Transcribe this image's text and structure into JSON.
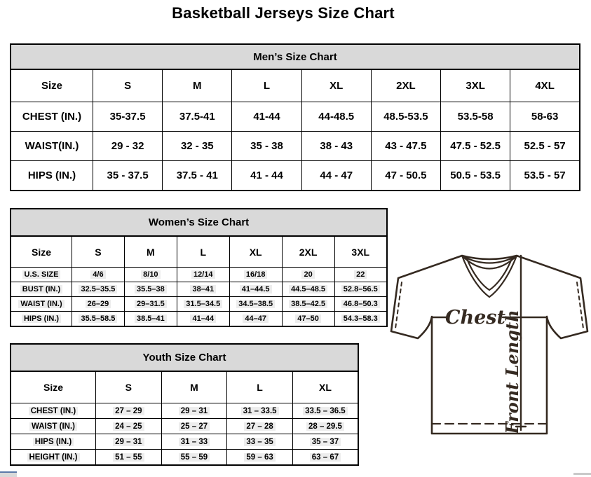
{
  "page_title": "Basketball Jerseys Size Chart",
  "colors": {
    "table_header_bg": "#d9d9d9",
    "table_border": "#000000",
    "diagram_ink": "#352a21",
    "cell_highlight": "#ededed",
    "cutoff_fragment_blue": "#5b79a8"
  },
  "tables": {
    "men": {
      "title": "Men’s Size Chart",
      "columns": [
        "Size",
        "S",
        "M",
        "L",
        "XL",
        "2XL",
        "3XL",
        "4XL"
      ],
      "rows": [
        {
          "label": "CHEST (IN.)",
          "values": [
            "35-37.5",
            "37.5-41",
            "41-44",
            "44-48.5",
            "48.5-53.5",
            "53.5-58",
            "58-63"
          ]
        },
        {
          "label": "WAIST(IN.)",
          "values": [
            "29 - 32",
            "32 - 35",
            "35 - 38",
            "38 - 43",
            "43 - 47.5",
            "47.5 - 52.5",
            "52.5 - 57"
          ]
        },
        {
          "label": "HIPS (IN.)",
          "values": [
            "35 - 37.5",
            "37.5 - 41",
            "41 - 44",
            "44 - 47",
            "47 - 50.5",
            "50.5 - 53.5",
            "53.5 - 57"
          ]
        }
      ]
    },
    "women": {
      "title": "Women’s Size Chart",
      "columns": [
        "Size",
        "S",
        "M",
        "L",
        "XL",
        "2XL",
        "3XL"
      ],
      "rows": [
        {
          "label": "U.S. SIZE",
          "values": [
            "4/6",
            "8/10",
            "12/14",
            "16/18",
            "20",
            "22"
          ]
        },
        {
          "label": "BUST (IN.)",
          "values": [
            "32.5–35.5",
            "35.5–38",
            "38–41",
            "41–44.5",
            "44.5–48.5",
            "52.8–56.5"
          ]
        },
        {
          "label": "WAIST (IN.)",
          "values": [
            "26–29",
            "29–31.5",
            "31.5–34.5",
            "34.5–38.5",
            "38.5–42.5",
            "46.8–50.3"
          ]
        },
        {
          "label": "HIPS (IN.)",
          "values": [
            "35.5–58.5",
            "38.5–41",
            "41–44",
            "44–47",
            "47–50",
            "54.3–58.3"
          ]
        }
      ]
    },
    "youth": {
      "title": "Youth Size Chart",
      "columns": [
        "Size",
        "S",
        "M",
        "L",
        "XL"
      ],
      "rows": [
        {
          "label": "CHEST (IN.)",
          "values": [
            "27 – 29",
            "29 – 31",
            "31 – 33.5",
            "33.5 – 36.5"
          ]
        },
        {
          "label": "WAIST (IN.)",
          "values": [
            "24 – 25",
            "25 – 27",
            "27 – 28",
            "28 – 29.5"
          ]
        },
        {
          "label": "HIPS (IN.)",
          "values": [
            "29 – 31",
            "31 – 33",
            "33 – 35",
            "35 – 37"
          ]
        },
        {
          "label": "HEIGHT (IN.)",
          "values": [
            "51 – 55",
            "55 – 59",
            "59 – 63",
            "63 – 67"
          ]
        }
      ]
    }
  },
  "diagram": {
    "chest_label": "Chest",
    "front_length_label": "Front Length"
  }
}
